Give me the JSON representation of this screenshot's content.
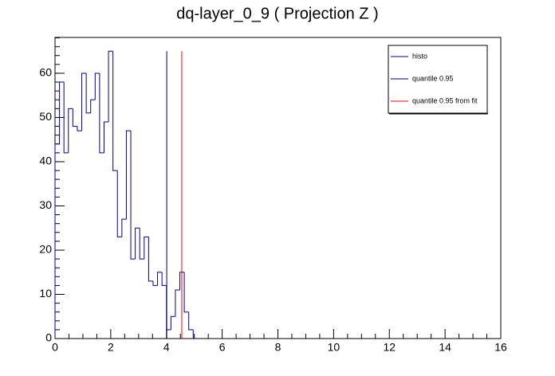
{
  "chart_data": {
    "type": "histogram",
    "title": "dq-layer_0_9 ( Projection Z )",
    "bins": [
      0,
      0.16,
      0.32,
      0.48,
      0.64,
      0.8,
      0.96,
      1.12,
      1.28,
      1.44,
      1.6,
      1.76,
      1.92,
      2.08,
      2.24,
      2.4,
      2.56,
      2.72,
      2.88,
      3.04,
      3.2,
      3.36,
      3.52,
      3.68,
      3.84,
      4.0,
      4.16,
      4.32,
      4.48,
      4.64,
      4.8,
      4.96
    ],
    "series": [
      {
        "name": "histo",
        "color": "#000099",
        "values": [
          44,
          58,
          42,
          52,
          48,
          47,
          60,
          51,
          54,
          60,
          42,
          49,
          65,
          38,
          23,
          27,
          47,
          18,
          25,
          18,
          23,
          13,
          12,
          15,
          12,
          2,
          5,
          11,
          15,
          6,
          2
        ]
      }
    ],
    "lines": [
      {
        "name": "quantile 0.95",
        "color": "#000066",
        "x": 4.01,
        "top": 65
      },
      {
        "name": "quantile 0.95 from fit",
        "color": "#ff0000",
        "x": 4.55,
        "top": 65
      }
    ],
    "xlim": [
      0,
      16
    ],
    "xticks": [
      0,
      2,
      4,
      6,
      8,
      10,
      12,
      14,
      16
    ],
    "ylim": [
      0,
      68.1
    ],
    "yticks": [
      0,
      10,
      20,
      30,
      40,
      50,
      60
    ],
    "legend": "upper right"
  }
}
